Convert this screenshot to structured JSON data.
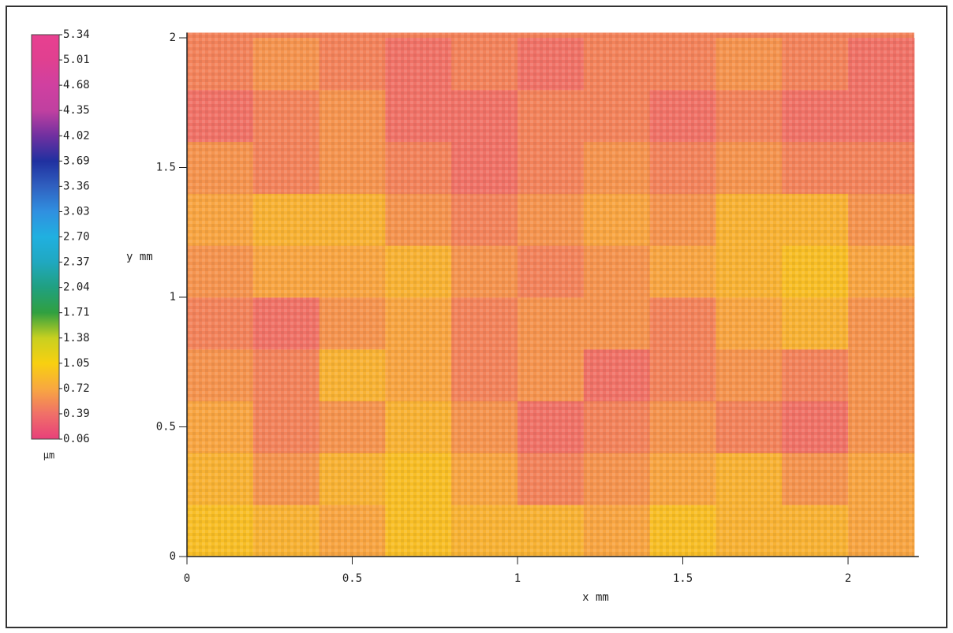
{
  "chart_data": {
    "type": "heatmap",
    "x_label": "x mm",
    "y_label": "y mm",
    "xlim": [
      0,
      2.2
    ],
    "ylim": [
      0,
      2.02
    ],
    "xticks": [
      0,
      0.5,
      1,
      1.5,
      2
    ],
    "yticks": [
      0,
      0.5,
      1,
      1.5,
      2
    ],
    "x": [
      0.1,
      0.3,
      0.5,
      0.7,
      0.9,
      1.1,
      1.3,
      1.5,
      1.7,
      1.9,
      2.1
    ],
    "y": [
      0.1,
      0.3,
      0.5,
      0.7,
      0.9,
      1.1,
      1.3,
      1.5,
      1.7,
      1.9
    ],
    "z": [
      [
        0.9,
        0.8,
        0.7,
        0.9,
        0.8,
        0.8,
        0.7,
        0.9,
        0.8,
        0.8,
        0.7
      ],
      [
        0.8,
        0.6,
        0.8,
        0.9,
        0.7,
        0.5,
        0.6,
        0.7,
        0.8,
        0.6,
        0.7
      ],
      [
        0.7,
        0.5,
        0.6,
        0.8,
        0.6,
        0.4,
        0.5,
        0.6,
        0.5,
        0.4,
        0.6
      ],
      [
        0.6,
        0.5,
        0.8,
        0.7,
        0.5,
        0.6,
        0.4,
        0.5,
        0.6,
        0.5,
        0.6
      ],
      [
        0.5,
        0.4,
        0.6,
        0.7,
        0.5,
        0.6,
        0.6,
        0.5,
        0.7,
        0.8,
        0.6
      ],
      [
        0.6,
        0.7,
        0.7,
        0.8,
        0.6,
        0.5,
        0.6,
        0.7,
        0.8,
        0.9,
        0.7
      ],
      [
        0.7,
        0.8,
        0.8,
        0.6,
        0.5,
        0.6,
        0.7,
        0.6,
        0.8,
        0.8,
        0.6
      ],
      [
        0.6,
        0.5,
        0.6,
        0.5,
        0.4,
        0.5,
        0.6,
        0.5,
        0.6,
        0.5,
        0.5
      ],
      [
        0.4,
        0.5,
        0.6,
        0.4,
        0.4,
        0.5,
        0.5,
        0.4,
        0.5,
        0.4,
        0.4
      ],
      [
        0.5,
        0.6,
        0.5,
        0.4,
        0.5,
        0.4,
        0.5,
        0.5,
        0.6,
        0.5,
        0.4
      ]
    ],
    "colorbar": {
      "label": "µm",
      "ticks": [
        0.06,
        0.39,
        0.72,
        1.05,
        1.38,
        1.71,
        2.04,
        2.37,
        {
          "value": 2.7,
          "label": "2.70"
        },
        3.03,
        3.36,
        3.69,
        4.02,
        4.35,
        4.68,
        5.01,
        5.34
      ],
      "colors": [
        "#e8407a",
        "#f07068",
        "#f8a840",
        "#f8d010",
        "#c8d020",
        "#30a040",
        "#20a080",
        "#20a8c0",
        "#20b0e0",
        "#3090e0",
        "#3060c0",
        "#2030a0",
        "#7030a0",
        "#c040a0",
        "#d040a0",
        "#e04090",
        "#e84090"
      ]
    }
  }
}
